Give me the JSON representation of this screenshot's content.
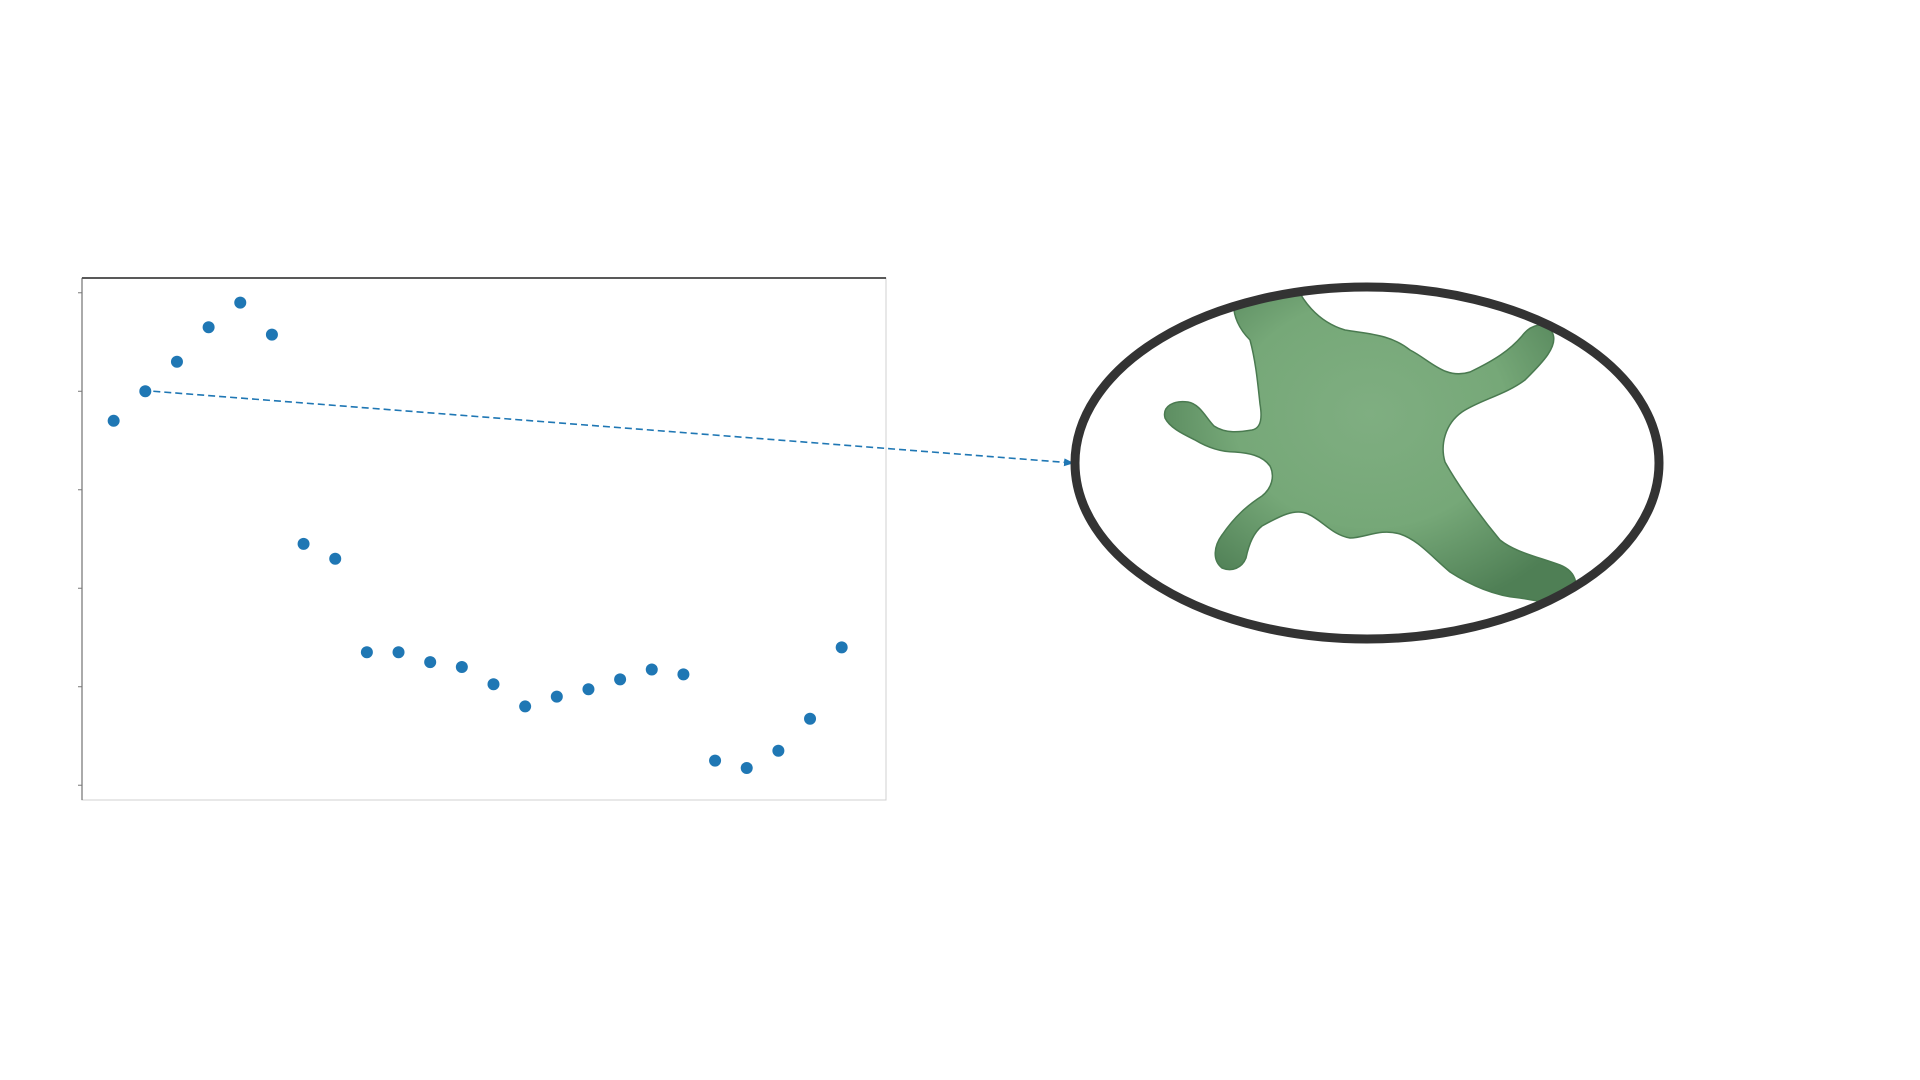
{
  "chart_data": {
    "type": "scatter",
    "title": "",
    "xlabel": "",
    "ylabel": "",
    "grid": false,
    "legend": "none",
    "series": [
      {
        "color": "#1f77b4",
        "points": [
          {
            "x": 1,
            "y": 0.74
          },
          {
            "x": 2,
            "y": 0.8
          },
          {
            "x": 3,
            "y": 0.86
          },
          {
            "x": 4,
            "y": 0.93
          },
          {
            "x": 5,
            "y": 0.98
          },
          {
            "x": 6,
            "y": 0.915
          },
          {
            "x": 7,
            "y": 0.49
          },
          {
            "x": 8,
            "y": 0.46
          },
          {
            "x": 9,
            "y": 0.27
          },
          {
            "x": 10,
            "y": 0.27
          },
          {
            "x": 11,
            "y": 0.25
          },
          {
            "x": 12,
            "y": 0.24
          },
          {
            "x": 13,
            "y": 0.205
          },
          {
            "x": 14,
            "y": 0.16
          },
          {
            "x": 15,
            "y": 0.18
          },
          {
            "x": 16,
            "y": 0.195
          },
          {
            "x": 17,
            "y": 0.215
          },
          {
            "x": 18,
            "y": 0.235
          },
          {
            "x": 19,
            "y": 0.225
          },
          {
            "x": 20,
            "y": 0.05
          },
          {
            "x": 21,
            "y": 0.035
          },
          {
            "x": 22,
            "y": 0.07
          },
          {
            "x": 23,
            "y": 0.135
          },
          {
            "x": 24,
            "y": 0.28
          }
        ]
      }
    ],
    "xlim": [
      0,
      25.4
    ],
    "ylim": [
      -0.03,
      1.03
    ],
    "highlighted_point_index": 1
  },
  "annotation": {
    "type": "dashed-arrow",
    "from_point_index": 1,
    "target": "shape-inset",
    "color": "#1f77b4"
  },
  "inset": {
    "shape": "ellipse",
    "border_color": "#333333",
    "content_icon": "branched-cell-shape-icon",
    "content_color": "#7aab7c"
  }
}
